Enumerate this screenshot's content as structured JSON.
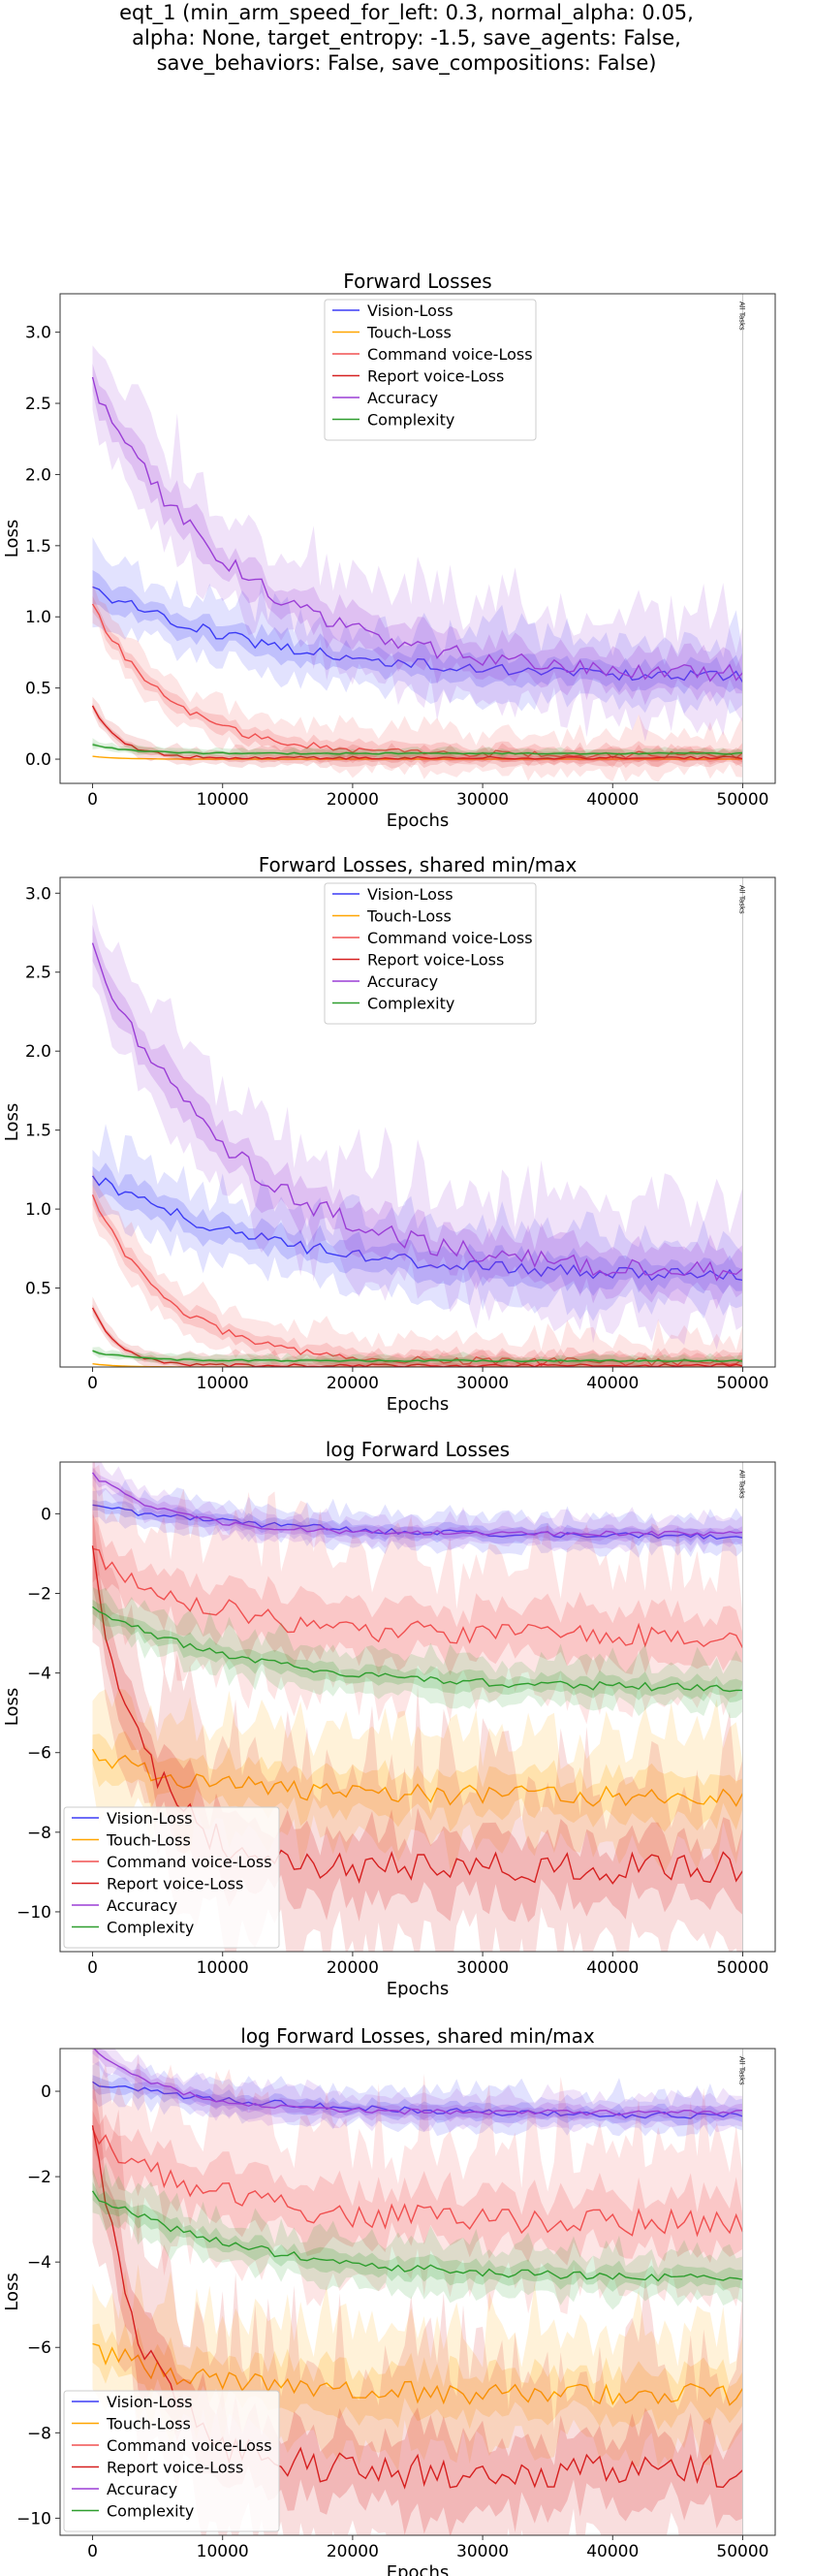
{
  "suptitle_lines": [
    "eqt_1 (min_arm_speed_for_left: 0.3, normal_alpha: 0.05,",
    "alpha: None, target_entropy: -1.5, save_agents: False,",
    "save_behaviors: False, save_compositions: False)"
  ],
  "colors": {
    "vision": "#3b3bf5",
    "touch": "#ffa500",
    "command": "#f05050",
    "report": "#d62020",
    "accuracy": "#9b3ed6",
    "complexity": "#2e9e2e"
  },
  "chart_data": [
    {
      "type": "line",
      "title": "Forward Losses",
      "xlabel": "Epochs",
      "ylabel": "Loss",
      "xlim": [
        -2500,
        52500
      ],
      "ylim": [
        -0.17,
        3.27
      ],
      "xticks": [
        0,
        10000,
        20000,
        30000,
        40000,
        50000
      ],
      "xtick_labels": [
        "0",
        "10000",
        "20000",
        "30000",
        "40000",
        "50000"
      ],
      "yticks": [
        0.0,
        0.5,
        1.0,
        1.5,
        2.0,
        2.5,
        3.0
      ],
      "ytick_labels": [
        "0.0",
        "0.5",
        "1.0",
        "1.5",
        "2.0",
        "2.5",
        "3.0"
      ],
      "legend_position": "top-center",
      "vline": {
        "x": 50000,
        "label": "All Tasks"
      },
      "series": [
        {
          "name": "Vision-Loss",
          "key": "vision",
          "start": 1.2,
          "end": 0.56,
          "tau": 14000,
          "band": 0.16
        },
        {
          "name": "Touch-Loss",
          "key": "touch",
          "start": 0.02,
          "end": 0.0,
          "tau": 2000,
          "band": 0.0
        },
        {
          "name": "Command voice-Loss",
          "key": "command",
          "start": 1.08,
          "end": 0.03,
          "tau": 6000,
          "band": 0.1
        },
        {
          "name": "Report voice-Loss",
          "key": "report",
          "start": 0.37,
          "end": 0.01,
          "tau": 2000,
          "band": 0.04
        },
        {
          "name": "Accuracy",
          "key": "accuracy",
          "start": 2.65,
          "end": 0.58,
          "tau": 11000,
          "band": 0.25
        },
        {
          "name": "Complexity",
          "key": "complexity",
          "start": 0.1,
          "end": 0.04,
          "tau": 3000,
          "band": 0.02
        }
      ]
    },
    {
      "type": "line",
      "title": "Forward Losses, shared min/max",
      "xlabel": "Epochs",
      "ylabel": "Loss",
      "xlim": [
        -2500,
        52500
      ],
      "ylim": [
        0.0,
        3.1
      ],
      "xticks": [
        0,
        10000,
        20000,
        30000,
        40000,
        50000
      ],
      "xtick_labels": [
        "0",
        "10000",
        "20000",
        "30000",
        "40000",
        "50000"
      ],
      "yticks": [
        0.5,
        1.0,
        1.5,
        2.0,
        2.5,
        3.0
      ],
      "ytick_labels": [
        "0.5",
        "1.0",
        "1.5",
        "2.0",
        "2.5",
        "3.0"
      ],
      "legend_position": "top-center",
      "vline": {
        "x": 50000,
        "label": "All Tasks"
      },
      "series": [
        {
          "name": "Vision-Loss",
          "key": "vision",
          "start": 1.2,
          "end": 0.56,
          "tau": 14000,
          "band": 0.16
        },
        {
          "name": "Touch-Loss",
          "key": "touch",
          "start": 0.02,
          "end": 0.0,
          "tau": 2000,
          "band": 0.0
        },
        {
          "name": "Command voice-Loss",
          "key": "command",
          "start": 1.08,
          "end": 0.03,
          "tau": 6000,
          "band": 0.1
        },
        {
          "name": "Report voice-Loss",
          "key": "report",
          "start": 0.37,
          "end": 0.01,
          "tau": 2000,
          "band": 0.04
        },
        {
          "name": "Accuracy",
          "key": "accuracy",
          "start": 2.65,
          "end": 0.58,
          "tau": 11000,
          "band": 0.25
        },
        {
          "name": "Complexity",
          "key": "complexity",
          "start": 0.1,
          "end": 0.04,
          "tau": 3000,
          "band": 0.02
        }
      ]
    },
    {
      "type": "line",
      "title": "log Forward Losses",
      "xlabel": "Epochs",
      "ylabel": "Loss",
      "xlim": [
        -2500,
        52500
      ],
      "ylim": [
        -11.0,
        1.3
      ],
      "xticks": [
        0,
        10000,
        20000,
        30000,
        40000,
        50000
      ],
      "xtick_labels": [
        "0",
        "10000",
        "20000",
        "30000",
        "40000",
        "50000"
      ],
      "yticks": [
        0,
        -2,
        -4,
        -6,
        -8,
        -10
      ],
      "ytick_labels": [
        "0",
        "−2",
        "−4",
        "−6",
        "−8",
        "−10"
      ],
      "legend_position": "bottom-left",
      "vline": {
        "x": 50000,
        "label": "All Tasks"
      },
      "series": [
        {
          "name": "Vision-Loss",
          "key": "vision",
          "start": 0.2,
          "end": -0.6,
          "tau": 15000,
          "band": 0.3
        },
        {
          "name": "Touch-Loss",
          "key": "touch",
          "start": -6.0,
          "end": -7.1,
          "tau": 8000,
          "band": 1.0
        },
        {
          "name": "Command voice-Loss",
          "key": "command",
          "start": -1.0,
          "end": -3.1,
          "tau": 9000,
          "band": 1.2
        },
        {
          "name": "Report voice-Loss",
          "key": "report",
          "start": -1.0,
          "end": -8.9,
          "tau": 4000,
          "band": 1.6
        },
        {
          "name": "Accuracy",
          "key": "accuracy",
          "start": 1.0,
          "end": -0.5,
          "tau": 6000,
          "band": 0.25
        },
        {
          "name": "Complexity",
          "key": "complexity",
          "start": -2.4,
          "end": -4.4,
          "tau": 12000,
          "band": 0.4
        }
      ]
    },
    {
      "type": "line",
      "title": "log Forward Losses, shared min/max",
      "xlabel": "Epochs",
      "ylabel": "Loss",
      "xlim": [
        -2500,
        52500
      ],
      "ylim": [
        -10.4,
        1.0
      ],
      "xticks": [
        0,
        10000,
        20000,
        30000,
        40000,
        50000
      ],
      "xtick_labels": [
        "0",
        "10000",
        "20000",
        "30000",
        "40000",
        "50000"
      ],
      "yticks": [
        0,
        -2,
        -4,
        -6,
        -8,
        -10
      ],
      "ytick_labels": [
        "0",
        "−2",
        "−4",
        "−6",
        "−8",
        "−10"
      ],
      "legend_position": "bottom-left",
      "vline": {
        "x": 50000,
        "label": "All Tasks"
      },
      "series": [
        {
          "name": "Vision-Loss",
          "key": "vision",
          "start": 0.2,
          "end": -0.6,
          "tau": 15000,
          "band": 0.3
        },
        {
          "name": "Touch-Loss",
          "key": "touch",
          "start": -6.0,
          "end": -7.1,
          "tau": 8000,
          "band": 1.0
        },
        {
          "name": "Command voice-Loss",
          "key": "command",
          "start": -1.0,
          "end": -3.1,
          "tau": 9000,
          "band": 1.2
        },
        {
          "name": "Report voice-Loss",
          "key": "report",
          "start": -1.0,
          "end": -8.9,
          "tau": 4000,
          "band": 1.6
        },
        {
          "name": "Accuracy",
          "key": "accuracy",
          "start": 1.0,
          "end": -0.5,
          "tau": 6000,
          "band": 0.25
        },
        {
          "name": "Complexity",
          "key": "complexity",
          "start": -2.4,
          "end": -4.4,
          "tau": 12000,
          "band": 0.4
        }
      ]
    }
  ]
}
